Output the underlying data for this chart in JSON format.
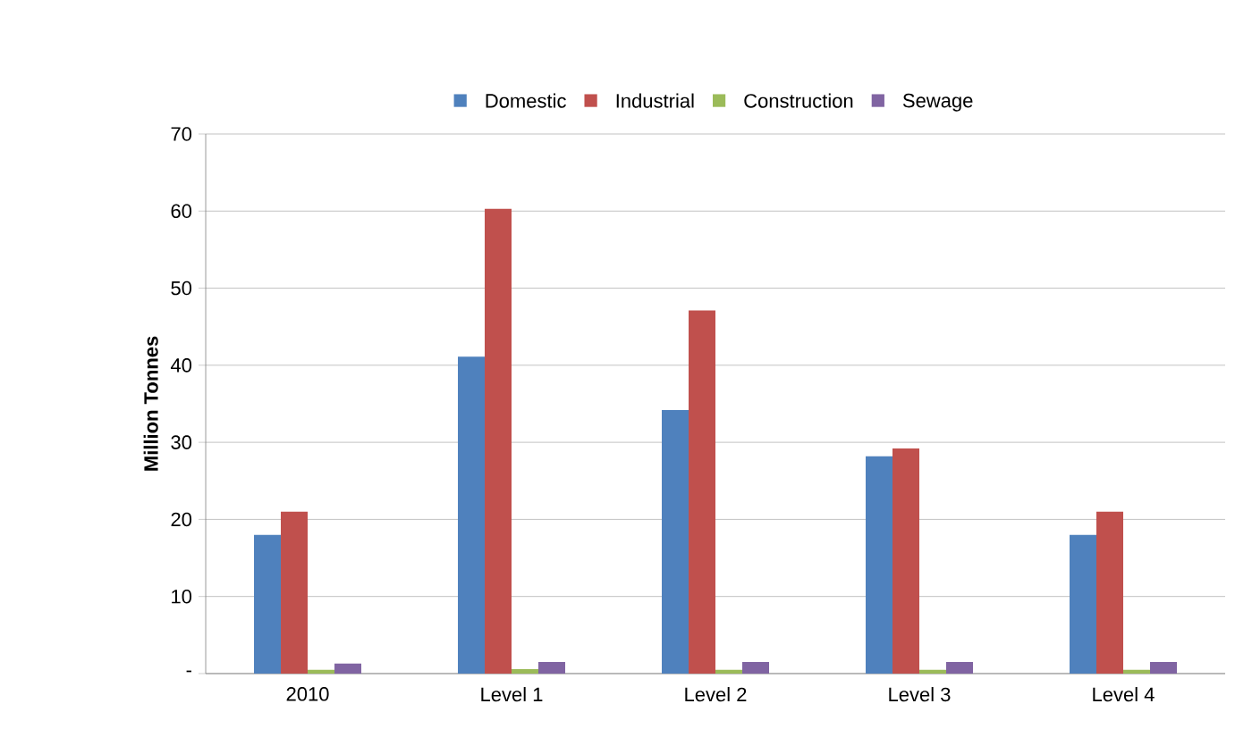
{
  "chart_data": {
    "type": "bar",
    "ylabel": "Million Tonnes",
    "categories": [
      "2010",
      "Level 1",
      "Level 2",
      "Level 3",
      "Level 4"
    ],
    "series": [
      {
        "name": "Domestic",
        "color": "#4f81bd",
        "values": [
          18,
          41.1,
          34.2,
          28.2,
          18
        ]
      },
      {
        "name": "Industrial",
        "color": "#c0504d",
        "values": [
          21,
          60.3,
          47.1,
          29.2,
          21
        ]
      },
      {
        "name": "Construction",
        "color": "#9bbb59",
        "values": [
          0.5,
          0.6,
          0.5,
          0.5,
          0.5
        ]
      },
      {
        "name": "Sewage",
        "color": "#8064a2",
        "values": [
          1.3,
          1.5,
          1.5,
          1.5,
          1.5
        ]
      }
    ],
    "ylim": [
      0,
      70
    ],
    "yticks": [
      {
        "value": 0,
        "label": "-"
      },
      10,
      20,
      30,
      40,
      50,
      60,
      70
    ],
    "grid": "y",
    "legend": "top"
  }
}
